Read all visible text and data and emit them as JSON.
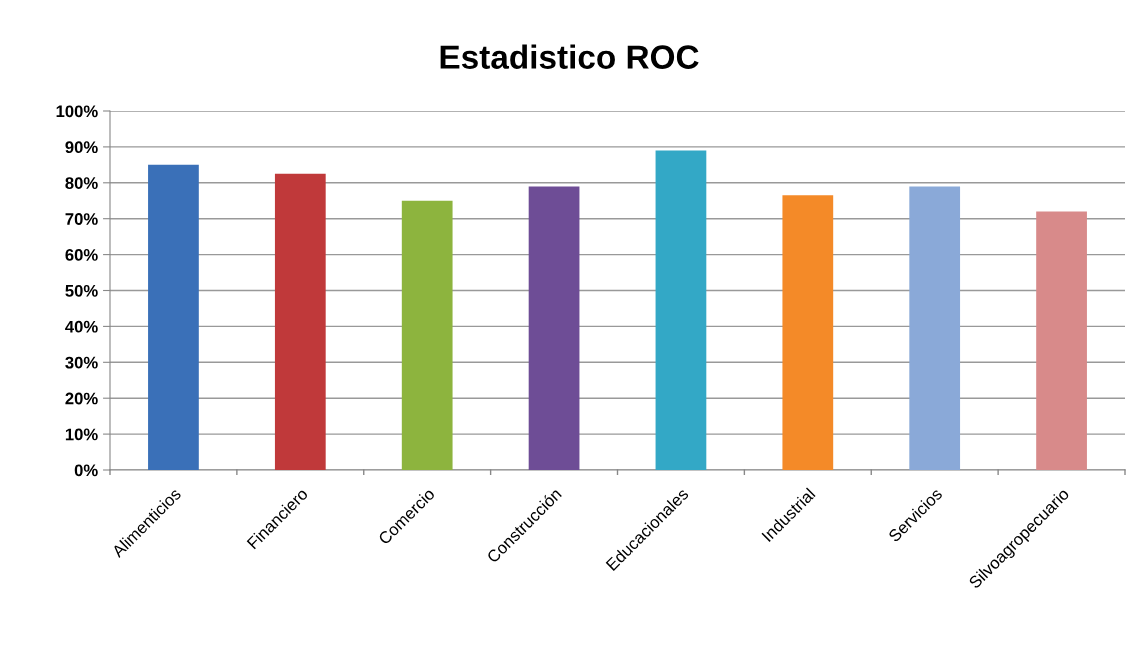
{
  "chart_data": {
    "type": "bar",
    "title": "Estadistico ROC",
    "categories": [
      "Alimenticios",
      "Financiero",
      "Comercio",
      "Construcción",
      "Educacionales",
      "Industrial",
      "Servicios",
      "Silvoagropecuario"
    ],
    "values": [
      0.85,
      0.825,
      0.75,
      0.79,
      0.89,
      0.765,
      0.79,
      0.72
    ],
    "colors": [
      "#3a70b8",
      "#c0393a",
      "#8db43e",
      "#6e4d96",
      "#33a8c6",
      "#f48a28",
      "#8aa9d8",
      "#d88a8a"
    ],
    "ylim": [
      0,
      1
    ],
    "yticks": [
      {
        "value": 0,
        "label": "0%"
      },
      {
        "value": 0.1,
        "label": "10%"
      },
      {
        "value": 0.2,
        "label": "20%"
      },
      {
        "value": 0.3,
        "label": "30%"
      },
      {
        "value": 0.4,
        "label": "40%"
      },
      {
        "value": 0.5,
        "label": "50%"
      },
      {
        "value": 0.6,
        "label": "60%"
      },
      {
        "value": 0.7,
        "label": "70%"
      },
      {
        "value": 0.8,
        "label": "80%"
      },
      {
        "value": 0.9,
        "label": "90%"
      },
      {
        "value": 1,
        "label": "100%"
      }
    ],
    "grid": "y",
    "legend": false
  }
}
